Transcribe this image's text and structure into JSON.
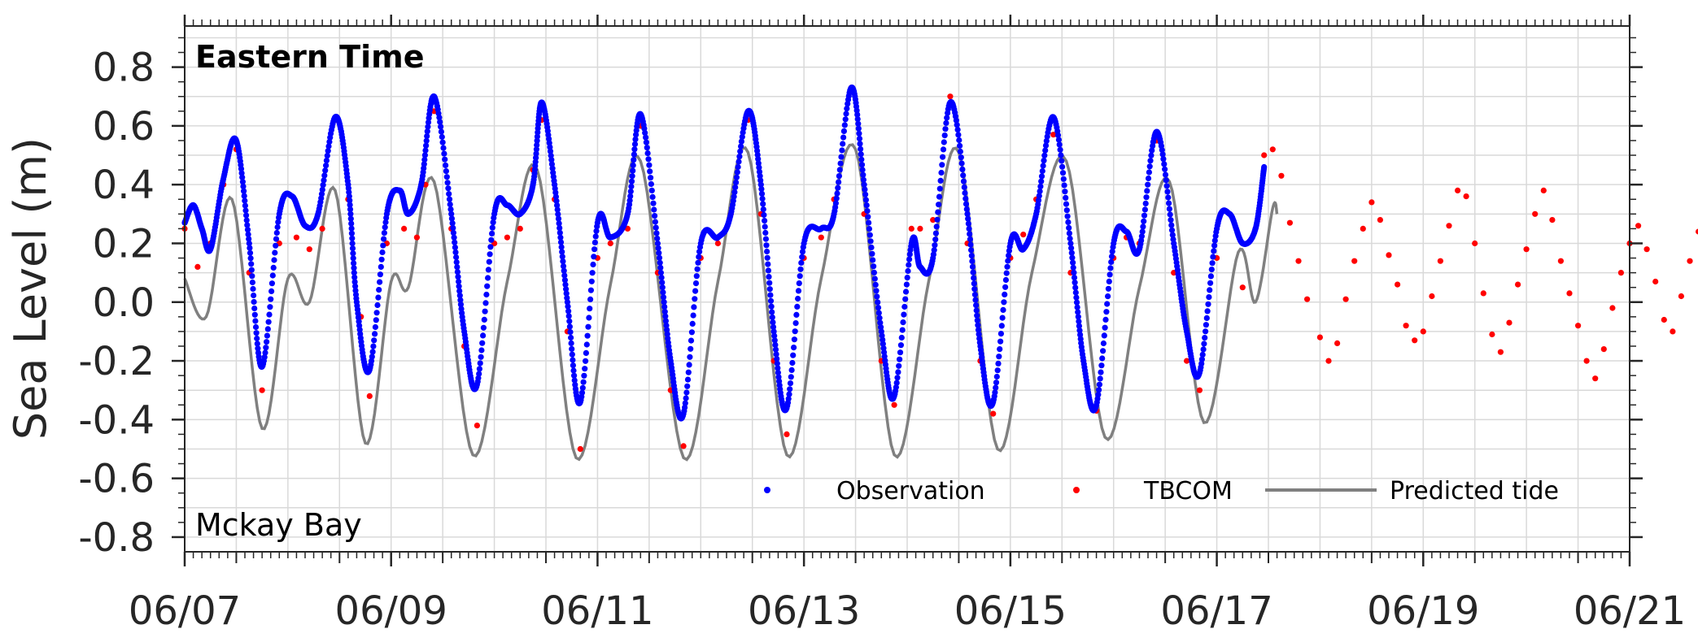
{
  "chart_data": {
    "type": "line",
    "ylabel": "Sea Level (m)",
    "ylim": [
      -0.85,
      0.94
    ],
    "xlim": [
      "06/07",
      "06/21"
    ],
    "x_unit": "date (MM/DD)",
    "x_ticks": [
      "06/07",
      "06/09",
      "06/11",
      "06/13",
      "06/15",
      "06/17",
      "06/19",
      "06/21"
    ],
    "y_ticks": [
      "0.8",
      "0.6",
      "0.4",
      "0.2",
      "0.0",
      "-0.2",
      "-0.4",
      "-0.6",
      "-0.8"
    ],
    "y_tick_values": [
      0.8,
      0.6,
      0.4,
      0.2,
      0.0,
      -0.2,
      -0.4,
      -0.6,
      -0.8
    ],
    "grid": true,
    "legend_position": "bottom-right",
    "annotations": {
      "time_zone": "Eastern Time",
      "station": "Mckay Bay"
    },
    "colors": {
      "observation": "#0000ff",
      "tbcom": "#ff0000",
      "predicted": "#808080"
    },
    "series": [
      {
        "name": "Observation",
        "style": "dots",
        "points": [
          [
            "06/07 00:00",
            0.27
          ],
          [
            "06/07 02:00",
            0.33
          ],
          [
            "06/07 04:00",
            0.25
          ],
          [
            "06/07 06:00",
            0.18
          ],
          [
            "06/07 09:00",
            0.42
          ],
          [
            "06/07 12:00",
            0.55
          ],
          [
            "06/07 15:00",
            0.2
          ],
          [
            "06/07 18:00",
            -0.22
          ],
          [
            "06/07 22:00",
            0.3
          ],
          [
            "06/08 01:00",
            0.36
          ],
          [
            "06/08 04:00",
            0.26
          ],
          [
            "06/08 07:00",
            0.3
          ],
          [
            "06/08 11:00",
            0.63
          ],
          [
            "06/08 14:00",
            0.4
          ],
          [
            "06/08 16:00",
            0.0
          ],
          [
            "06/08 19:00",
            -0.23
          ],
          [
            "06/08 23:00",
            0.3
          ],
          [
            "06/09 02:00",
            0.38
          ],
          [
            "06/09 04:00",
            0.3
          ],
          [
            "06/09 07:00",
            0.4
          ],
          [
            "06/09 10:00",
            0.7
          ],
          [
            "06/09 14:00",
            0.3
          ],
          [
            "06/09 17:00",
            -0.1
          ],
          [
            "06/09 20:00",
            -0.28
          ],
          [
            "06/10 00:00",
            0.3
          ],
          [
            "06/10 03:00",
            0.33
          ],
          [
            "06/10 06:00",
            0.3
          ],
          [
            "06/10 09:00",
            0.4
          ],
          [
            "06/10 11:00",
            0.68
          ],
          [
            "06/10 14:00",
            0.4
          ],
          [
            "06/10 17:00",
            0.0
          ],
          [
            "06/10 20:00",
            -0.34
          ],
          [
            "06/11 00:00",
            0.27
          ],
          [
            "06/11 03:00",
            0.22
          ],
          [
            "06/11 07:00",
            0.3
          ],
          [
            "06/11 10:00",
            0.64
          ],
          [
            "06/11 14:00",
            0.2
          ],
          [
            "06/11 17:00",
            -0.2
          ],
          [
            "06/11 20:00",
            -0.38
          ],
          [
            "06/12 00:00",
            0.2
          ],
          [
            "06/12 04:00",
            0.22
          ],
          [
            "06/12 07:00",
            0.3
          ],
          [
            "06/12 11:00",
            0.65
          ],
          [
            "06/12 14:00",
            0.4
          ],
          [
            "06/12 17:00",
            -0.1
          ],
          [
            "06/12 20:00",
            -0.36
          ],
          [
            "06/13 00:00",
            0.2
          ],
          [
            "06/13 04:00",
            0.25
          ],
          [
            "06/13 07:00",
            0.3
          ],
          [
            "06/13 11:00",
            0.73
          ],
          [
            "06/13 14:00",
            0.4
          ],
          [
            "06/13 18:00",
            -0.1
          ],
          [
            "06/13 21:00",
            -0.32
          ],
          [
            "06/14 01:00",
            0.2
          ],
          [
            "06/14 03:00",
            0.12
          ],
          [
            "06/14 06:00",
            0.15
          ],
          [
            "06/14 10:00",
            0.68
          ],
          [
            "06/14 14:00",
            0.3
          ],
          [
            "06/14 17:00",
            -0.15
          ],
          [
            "06/14 20:00",
            -0.34
          ],
          [
            "06/15 00:00",
            0.2
          ],
          [
            "06/15 03:00",
            0.18
          ],
          [
            "06/15 06:00",
            0.3
          ],
          [
            "06/15 10:00",
            0.63
          ],
          [
            "06/15 14:00",
            0.2
          ],
          [
            "06/15 17:00",
            -0.2
          ],
          [
            "06/15 20:00",
            -0.35
          ],
          [
            "06/16 00:00",
            0.2
          ],
          [
            "06/16 03:00",
            0.24
          ],
          [
            "06/16 06:00",
            0.18
          ],
          [
            "06/16 10:00",
            0.58
          ],
          [
            "06/16 14:00",
            0.2
          ],
          [
            "06/16 17:00",
            -0.1
          ],
          [
            "06/16 20:00",
            -0.24
          ],
          [
            "06/17 00:00",
            0.25
          ],
          [
            "06/17 03:00",
            0.3
          ],
          [
            "06/17 06:00",
            0.2
          ],
          [
            "06/17 09:00",
            0.25
          ],
          [
            "06/17 11:00",
            0.46
          ]
        ]
      },
      {
        "name": "TBCOM",
        "style": "dots",
        "points": [
          [
            "06/07 00:00",
            0.25
          ],
          [
            "06/07 03:00",
            0.12
          ],
          [
            "06/07 06:00",
            0.2
          ],
          [
            "06/07 09:00",
            0.4
          ],
          [
            "06/07 12:00",
            0.52
          ],
          [
            "06/07 15:00",
            0.1
          ],
          [
            "06/07 18:00",
            -0.3
          ],
          [
            "06/07 22:00",
            0.2
          ],
          [
            "06/08 02:00",
            0.22
          ],
          [
            "06/08 05:00",
            0.18
          ],
          [
            "06/08 08:00",
            0.25
          ],
          [
            "06/08 11:00",
            0.62
          ],
          [
            "06/08 14:00",
            0.35
          ],
          [
            "06/08 17:00",
            -0.05
          ],
          [
            "06/08 19:00",
            -0.32
          ],
          [
            "06/08 23:00",
            0.2
          ],
          [
            "06/09 03:00",
            0.25
          ],
          [
            "06/09 06:00",
            0.22
          ],
          [
            "06/09 08:00",
            0.4
          ],
          [
            "06/09 10:00",
            0.65
          ],
          [
            "06/09 14:00",
            0.25
          ],
          [
            "06/09 17:00",
            -0.15
          ],
          [
            "06/09 20:00",
            -0.42
          ],
          [
            "06/10 00:00",
            0.2
          ],
          [
            "06/10 03:00",
            0.22
          ],
          [
            "06/10 06:00",
            0.25
          ],
          [
            "06/10 09:00",
            0.45
          ],
          [
            "06/10 11:00",
            0.62
          ],
          [
            "06/10 14:00",
            0.35
          ],
          [
            "06/10 17:00",
            -0.1
          ],
          [
            "06/10 20:00",
            -0.5
          ],
          [
            "06/11 00:00",
            0.15
          ],
          [
            "06/11 03:00",
            0.2
          ],
          [
            "06/11 07:00",
            0.25
          ],
          [
            "06/11 10:00",
            0.6
          ],
          [
            "06/11 14:00",
            0.1
          ],
          [
            "06/11 17:00",
            -0.3
          ],
          [
            "06/11 20:00",
            -0.49
          ],
          [
            "06/12 00:00",
            0.15
          ],
          [
            "06/12 04:00",
            0.2
          ],
          [
            "06/12 07:00",
            0.3
          ],
          [
            "06/12 11:00",
            0.62
          ],
          [
            "06/12 14:00",
            0.3
          ],
          [
            "06/12 17:00",
            -0.2
          ],
          [
            "06/12 20:00",
            -0.45
          ],
          [
            "06/13 00:00",
            0.15
          ],
          [
            "06/13 04:00",
            0.22
          ],
          [
            "06/13 07:00",
            0.35
          ],
          [
            "06/13 11:00",
            0.73
          ],
          [
            "06/13 14:00",
            0.3
          ],
          [
            "06/13 18:00",
            -0.2
          ],
          [
            "06/13 21:00",
            -0.35
          ],
          [
            "06/14 01:00",
            0.25
          ],
          [
            "06/14 03:00",
            0.25
          ],
          [
            "06/14 06:00",
            0.28
          ],
          [
            "06/14 10:00",
            0.7
          ],
          [
            "06/14 14:00",
            0.2
          ],
          [
            "06/14 17:00",
            -0.2
          ],
          [
            "06/14 20:00",
            -0.38
          ],
          [
            "06/15 00:00",
            0.15
          ],
          [
            "06/15 03:00",
            0.23
          ],
          [
            "06/15 06:00",
            0.35
          ],
          [
            "06/15 10:00",
            0.57
          ],
          [
            "06/15 14:00",
            0.1
          ],
          [
            "06/15 17:00",
            -0.2
          ],
          [
            "06/15 20:00",
            -0.37
          ],
          [
            "06/16 00:00",
            0.15
          ],
          [
            "06/16 03:00",
            0.22
          ],
          [
            "06/16 06:00",
            0.2
          ],
          [
            "06/16 10:00",
            0.55
          ],
          [
            "06/16 14:00",
            0.1
          ],
          [
            "06/16 17:00",
            -0.2
          ],
          [
            "06/16 20:00",
            -0.3
          ],
          [
            "06/17 00:00",
            0.15
          ],
          [
            "06/17 03:00",
            0.3
          ],
          [
            "06/17 06:00",
            0.05
          ],
          [
            "06/17 09:00",
            0.25
          ],
          [
            "06/17 11:00",
            0.5
          ],
          [
            "06/17 13:00",
            0.52
          ],
          [
            "06/17 15:00",
            0.43
          ],
          [
            "06/17 17:00",
            0.27
          ],
          [
            "06/17 19:00",
            0.14
          ],
          [
            "06/17 21:00",
            0.01
          ],
          [
            "06/18 00:00",
            -0.12
          ],
          [
            "06/18 02:00",
            -0.2
          ],
          [
            "06/18 04:00",
            -0.14
          ],
          [
            "06/18 06:00",
            0.01
          ],
          [
            "06/18 08:00",
            0.14
          ],
          [
            "06/18 10:00",
            0.25
          ],
          [
            "06/18 12:00",
            0.34
          ],
          [
            "06/18 14:00",
            0.28
          ],
          [
            "06/18 16:00",
            0.16
          ],
          [
            "06/18 18:00",
            0.06
          ],
          [
            "06/18 20:00",
            -0.08
          ],
          [
            "06/18 22:00",
            -0.13
          ],
          [
            "06/19 00:00",
            -0.1
          ],
          [
            "06/19 02:00",
            0.02
          ],
          [
            "06/19 04:00",
            0.14
          ],
          [
            "06/19 06:00",
            0.26
          ],
          [
            "06/19 08:00",
            0.38
          ],
          [
            "06/19 10:00",
            0.36
          ],
          [
            "06/19 12:00",
            0.2
          ],
          [
            "06/19 14:00",
            0.03
          ],
          [
            "06/19 16:00",
            -0.11
          ],
          [
            "06/19 18:00",
            -0.17
          ],
          [
            "06/19 20:00",
            -0.07
          ],
          [
            "06/19 22:00",
            0.06
          ],
          [
            "06/20 00:00",
            0.18
          ],
          [
            "06/20 02:00",
            0.3
          ],
          [
            "06/20 04:00",
            0.38
          ],
          [
            "06/20 06:00",
            0.28
          ],
          [
            "06/20 08:00",
            0.14
          ],
          [
            "06/20 10:00",
            0.03
          ],
          [
            "06/20 12:00",
            -0.08
          ],
          [
            "06/20 14:00",
            -0.2
          ],
          [
            "06/20 16:00",
            -0.26
          ],
          [
            "06/20 18:00",
            -0.16
          ],
          [
            "06/20 20:00",
            -0.02
          ],
          [
            "06/20 22:00",
            0.1
          ],
          [
            "06/21 00:00",
            0.2
          ],
          [
            "06/21 02:00",
            0.26
          ],
          [
            "06/21 04:00",
            0.18
          ],
          [
            "06/21 06:00",
            0.07
          ],
          [
            "06/21 08:00",
            -0.06
          ],
          [
            "06/21 10:00",
            -0.1
          ],
          [
            "06/21 12:00",
            0.02
          ],
          [
            "06/21 14:00",
            0.14
          ],
          [
            "06/21 16:00",
            0.24
          ]
        ]
      },
      {
        "name": "Predicted tide",
        "style": "line",
        "points": [
          [
            "06/07 00:00",
            0.08
          ],
          [
            "06/07 05:00",
            -0.05
          ],
          [
            "06/07 11:00",
            0.35
          ],
          [
            "06/07 18:00",
            -0.43
          ],
          [
            "06/08 00:00",
            0.08
          ],
          [
            "06/08 05:00",
            0.0
          ],
          [
            "06/08 11:00",
            0.38
          ],
          [
            "06/08 18:00",
            -0.48
          ],
          [
            "06/09 00:00",
            0.07
          ],
          [
            "06/09 04:00",
            0.05
          ],
          [
            "06/09 10:00",
            0.41
          ],
          [
            "06/09 19:00",
            -0.52
          ],
          [
            "06/10 03:00",
            0.07
          ],
          [
            "06/10 10:00",
            0.45
          ],
          [
            "06/10 19:00",
            -0.53
          ],
          [
            "06/11 03:00",
            0.06
          ],
          [
            "06/11 10:00",
            0.48
          ],
          [
            "06/11 20:00",
            -0.53
          ],
          [
            "06/12 04:00",
            0.07
          ],
          [
            "06/12 11:00",
            0.51
          ],
          [
            "06/12 20:00",
            -0.52
          ],
          [
            "06/13 04:00",
            0.08
          ],
          [
            "06/13 12:00",
            0.52
          ],
          [
            "06/13 21:00",
            -0.52
          ],
          [
            "06/14 05:00",
            0.07
          ],
          [
            "06/14 12:00",
            0.51
          ],
          [
            "06/14 21:00",
            -0.5
          ],
          [
            "06/15 05:00",
            0.1
          ],
          [
            "06/15 13:00",
            0.48
          ],
          [
            "06/15 22:00",
            -0.46
          ],
          [
            "06/16 06:00",
            0.05
          ],
          [
            "06/16 13:00",
            0.41
          ],
          [
            "06/16 21:00",
            -0.41
          ],
          [
            "06/17 05:00",
            0.17
          ],
          [
            "06/17 09:00",
            0.0
          ],
          [
            "06/17 13:00",
            0.32
          ],
          [
            "06/17 14:00",
            0.3
          ]
        ]
      }
    ]
  }
}
